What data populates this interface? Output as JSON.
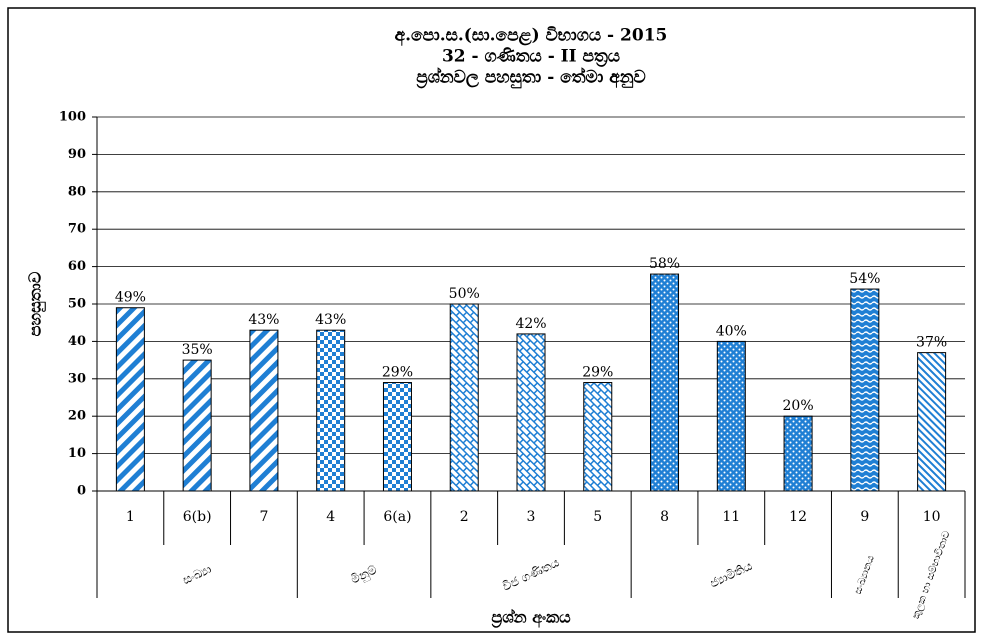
{
  "chart_data": {
    "type": "bar",
    "title": [
      "අ.පො.ස.(සා.පෙළ) විභාගය - 2015",
      "32 - ගණිතය - II පත්‍රය",
      "ප්‍රශ්නවල පහසුතා - තේමා අනුව"
    ],
    "y_label": "පහසුතාව",
    "x_label": "ප්‍රශ්න අංකය",
    "color": "#1f7fd4",
    "groups": [
      {
        "name": "සංඛ්‍යා",
        "categories": [
          "1",
          "6(b)",
          "7"
        ],
        "values": [
          49,
          35,
          43
        ],
        "value_labels": [
          "49%",
          "35%",
          "43%"
        ]
      },
      {
        "name": "මිනුම්",
        "categories": [
          "4",
          "6(a)"
        ],
        "values": [
          43,
          29
        ],
        "value_labels": [
          "43%",
          "29%"
        ]
      },
      {
        "name": "වීජ ගණිතය",
        "categories": [
          "2",
          "3",
          "5"
        ],
        "values": [
          50,
          42,
          29
        ],
        "value_labels": [
          "50%",
          "42%",
          "29%"
        ]
      },
      {
        "name": "ජ්‍යාමිතිය",
        "categories": [
          "8",
          "11",
          "12"
        ],
        "values": [
          58,
          40,
          20
        ],
        "value_labels": [
          "58%",
          "40%",
          "20%"
        ]
      },
      {
        "name": "සංඛ්‍යානය",
        "categories": [
          "9"
        ],
        "values": [
          54
        ],
        "value_labels": [
          "54%"
        ]
      },
      {
        "name": "කුලක හා සම්භාවිතාව",
        "categories": [
          "10"
        ],
        "values": [
          37
        ],
        "value_labels": [
          "37%"
        ]
      }
    ],
    "ylim": [
      0,
      100
    ],
    "yticks": [
      0,
      10,
      20,
      30,
      40,
      50,
      60,
      70,
      80,
      90,
      100
    ],
    "grid": true
  }
}
